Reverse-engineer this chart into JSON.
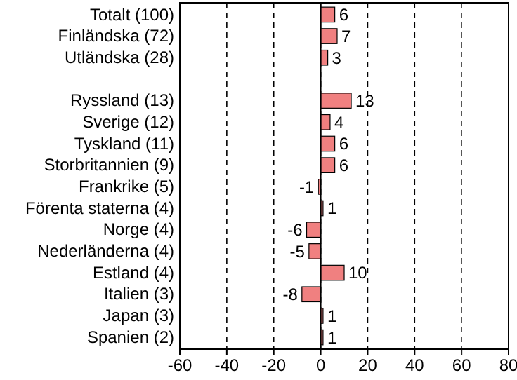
{
  "chart_data": {
    "type": "bar",
    "orientation": "horizontal",
    "categories": [
      "Totalt (100)",
      "Finländska (72)",
      "Utländska (28)",
      null,
      "Ryssland (13)",
      "Sverige (12)",
      "Tyskland (11)",
      "Storbritannien (9)",
      "Frankrike (5)",
      "Förenta staterna (4)",
      "Norge (4)",
      "Nederländerna (4)",
      "Estland (4)",
      "Italien (3)",
      "Japan (3)",
      "Spanien (2)"
    ],
    "values": [
      6,
      7,
      3,
      null,
      13,
      4,
      6,
      6,
      -1,
      1,
      -6,
      -5,
      10,
      -8,
      1,
      1
    ],
    "color": "#f08080",
    "data_labels": true,
    "xlim": [
      -60,
      80
    ],
    "xticks": [
      -60,
      -40,
      -20,
      0,
      20,
      40,
      60,
      80
    ],
    "grid": "x"
  }
}
